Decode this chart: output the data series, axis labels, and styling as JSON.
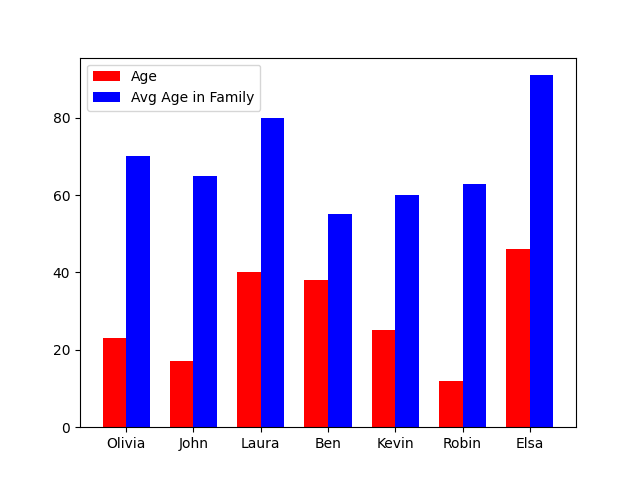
{
  "categories": [
    "Olivia",
    "John",
    "Laura",
    "Ben",
    "Kevin",
    "Robin",
    "Elsa"
  ],
  "age": [
    23,
    17,
    40,
    38,
    25,
    12,
    46
  ],
  "avg_age_in_family": [
    70,
    65,
    80,
    55,
    60,
    63,
    91
  ],
  "age_color": "#ff0000",
  "avg_age_color": "#0000ff",
  "legend_labels": [
    "Age",
    "Avg Age in Family"
  ],
  "bar_width": 0.35
}
